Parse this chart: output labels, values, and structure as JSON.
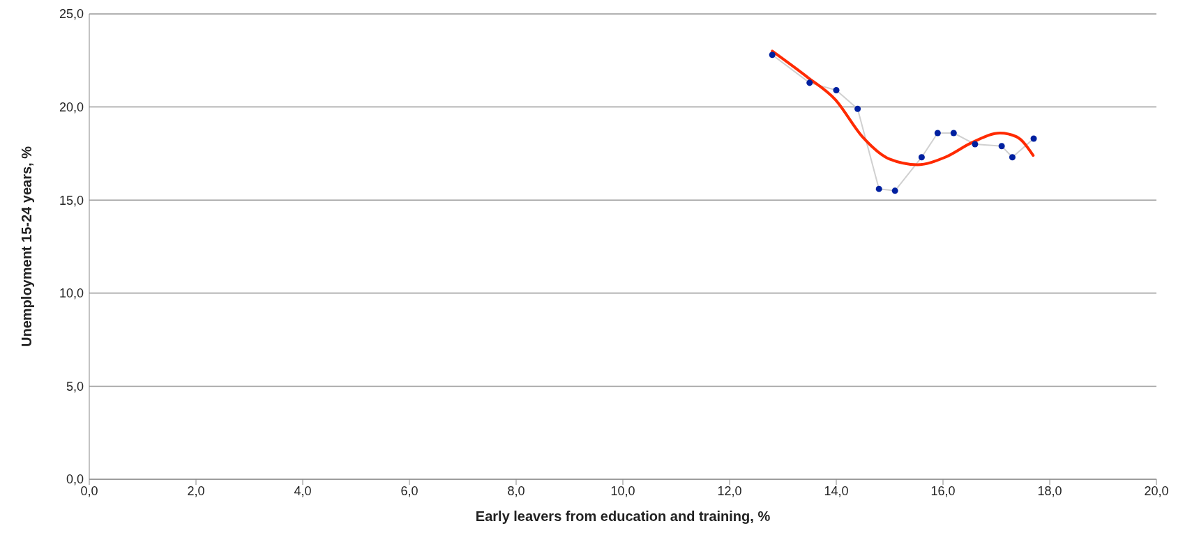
{
  "chart_data": {
    "type": "scatter",
    "xlabel": "Early leavers from education and training, %",
    "ylabel": "Unemployment 15-24 years, %",
    "xlim": [
      0,
      20
    ],
    "xticks": [
      {
        "value": 0,
        "label": "0,0"
      },
      {
        "value": 2,
        "label": "2,0"
      },
      {
        "value": 4,
        "label": "4,0"
      },
      {
        "value": 6,
        "label": "6,0"
      },
      {
        "value": 8,
        "label": "8,0"
      },
      {
        "value": 10,
        "label": "10,0"
      },
      {
        "value": 12,
        "label": "12,0"
      },
      {
        "value": 14,
        "label": "14,0"
      },
      {
        "value": 16,
        "label": "16,0"
      },
      {
        "value": 18,
        "label": "18,0"
      },
      {
        "value": 20,
        "label": "20,0"
      }
    ],
    "ylim": [
      0,
      25
    ],
    "yticks": [
      {
        "value": 0,
        "label": "0,0"
      },
      {
        "value": 5,
        "label": "5,0"
      },
      {
        "value": 10,
        "label": "10,0"
      },
      {
        "value": 15,
        "label": "15,0"
      },
      {
        "value": 20,
        "label": "20,0"
      },
      {
        "value": 25,
        "label": "25,0"
      }
    ],
    "grid": "y",
    "legend": false,
    "series": [
      {
        "type": "line",
        "color": "#d0d0d0",
        "marker": "none",
        "x": [
          17.7,
          17.3,
          17.1,
          16.6,
          16.2,
          15.9,
          15.6,
          15.1,
          14.8,
          14.4,
          14.0,
          13.5,
          12.8
        ],
        "values": [
          18.3,
          17.3,
          17.9,
          18.0,
          18.6,
          18.6,
          17.3,
          15.5,
          15.6,
          19.9,
          20.9,
          21.3,
          22.8
        ]
      },
      {
        "color": "#0020a0",
        "marker": "circle",
        "x": [
          17.7,
          17.3,
          17.1,
          16.6,
          16.2,
          15.9,
          15.6,
          15.1,
          14.8,
          14.4,
          14.0,
          13.5,
          12.8
        ],
        "values": [
          18.3,
          17.3,
          17.9,
          18.0,
          18.6,
          18.6,
          17.3,
          15.5,
          15.6,
          19.9,
          20.9,
          21.3,
          22.8
        ]
      },
      {
        "type": "line",
        "color": "#ff2a00",
        "marker": "none",
        "x": [
          12.8,
          13.46,
          13.98,
          14.49,
          15.0,
          15.52,
          16.04,
          16.55,
          17.07,
          17.38,
          17.69
        ],
        "values": [
          23.0,
          21.6,
          20.4,
          18.4,
          17.2,
          16.9,
          17.3,
          18.1,
          18.6,
          18.4,
          17.4
        ]
      }
    ]
  }
}
